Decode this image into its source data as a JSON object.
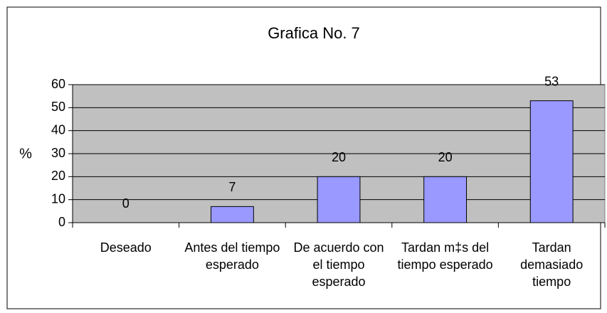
{
  "chart_data": {
    "type": "bar",
    "title": "Grafica No. 7",
    "ylabel": "%",
    "categories": [
      "Deseado",
      "Antes del tiempo esperado",
      "De acuerdo con el tiempo esperado",
      "Tardan m‡s del tiempo esperado",
      "Tardan demasiado tiempo"
    ],
    "values": [
      0,
      7,
      20,
      20,
      53
    ],
    "color": "#9999ff",
    "ylim": [
      0,
      60
    ],
    "yticks": [
      0,
      10,
      20,
      30,
      40,
      50,
      60
    ],
    "grid": true
  }
}
